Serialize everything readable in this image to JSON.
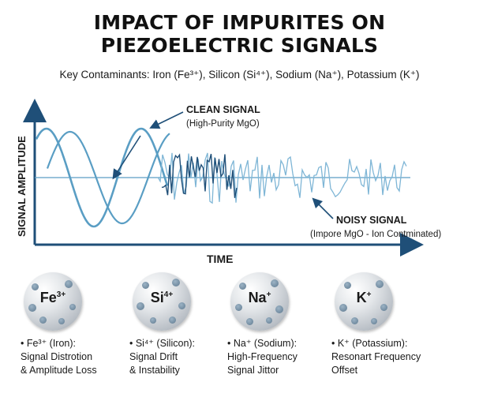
{
  "title": {
    "line1": "IMPACT OF IMPURITES ON",
    "line2": "PIEZOELECTRIC SIGNALS"
  },
  "subtitle": "Key Contaminants: Iron (Fe³⁺), Silicon (Si⁴⁺), Sodium (Na⁺), Potassium (K⁺)",
  "chart": {
    "ylabel": "SIGNAL AMPLITUDE",
    "xlabel": "TIME",
    "clean_label": "CLEAN SIGNAL",
    "clean_sub": "(High-Purity MgO)",
    "noisy_label": "NOISY SIGNAL",
    "noisy_sub": "(Impore MgO - Ion Contminated)",
    "colors": {
      "clean": "#5a9ec4",
      "noisy": "#1f4f78",
      "light": "#7fb6d6"
    }
  },
  "elements": [
    {
      "symbol": "Fe",
      "charge": "3+",
      "lines": [
        "• Fe³⁺ (Iron):",
        "Signal Distrotion",
        "& Amplitude Loss"
      ]
    },
    {
      "symbol": "Si",
      "charge": "4+",
      "lines": [
        "• Si⁴⁺ (Silicon):",
        "Signal Drift",
        "& Instability"
      ]
    },
    {
      "symbol": "Na",
      "charge": "+",
      "lines": [
        "• Na⁺ (Sodium):",
        "High-Frequency",
        "Signal Jittor"
      ]
    },
    {
      "symbol": "K",
      "charge": "+",
      "lines": [
        "• K⁺ (Potassium):",
        "Resonart Frequency",
        "Offset"
      ]
    }
  ]
}
